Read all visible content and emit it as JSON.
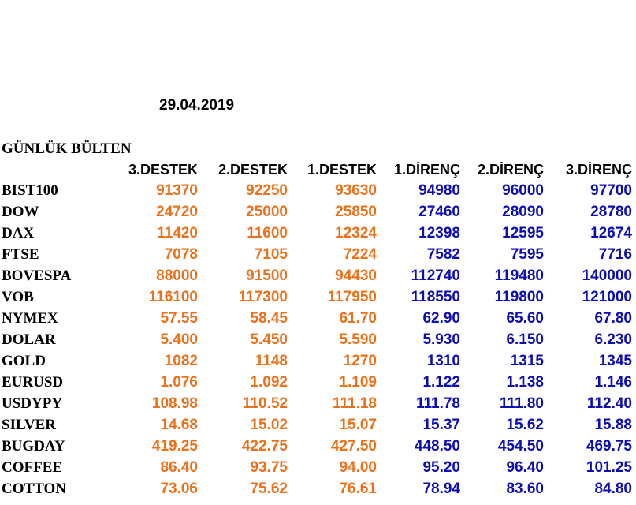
{
  "date": "29.04.2019",
  "title": "GÜNLÜK BÜLTEN",
  "colors": {
    "support": "#ec7018",
    "resistance": "#0c0cb4"
  },
  "columns": [
    "3.DESTEK",
    "2.DESTEK",
    "1.DESTEK",
    "1.DİRENÇ",
    "2.DİRENÇ",
    "3.DİRENÇ"
  ],
  "rows": [
    {
      "name": "BIST100",
      "values": [
        "91370",
        "92250",
        "93630",
        "94980",
        "96000",
        "97700"
      ]
    },
    {
      "name": "DOW",
      "values": [
        "24720",
        "25000",
        "25850",
        "27460",
        "28090",
        "28780"
      ]
    },
    {
      "name": "DAX",
      "values": [
        "11420",
        "11600",
        "12324",
        "12398",
        "12595",
        "12674"
      ]
    },
    {
      "name": "FTSE",
      "values": [
        "7078",
        "7105",
        "7224",
        "7582",
        "7595",
        "7716"
      ]
    },
    {
      "name": "BOVESPA",
      "values": [
        "88000",
        "91500",
        "94430",
        "112740",
        "119480",
        "140000"
      ]
    },
    {
      "name": "VOB",
      "values": [
        "116100",
        "117300",
        "117950",
        "118550",
        "119800",
        "121000"
      ]
    },
    {
      "name": "NYMEX",
      "values": [
        "57.55",
        "58.45",
        "61.70",
        "62.90",
        "65.60",
        "67.80"
      ]
    },
    {
      "name": "DOLAR",
      "values": [
        "5.400",
        "5.450",
        "5.590",
        "5.930",
        "6.150",
        "6.230"
      ]
    },
    {
      "name": "GOLD",
      "values": [
        "1082",
        "1148",
        "1270",
        "1310",
        "1315",
        "1345"
      ]
    },
    {
      "name": "EURUSD",
      "values": [
        "1.076",
        "1.092",
        "1.109",
        "1.122",
        "1.138",
        "1.146"
      ]
    },
    {
      "name": "USDYPY",
      "values": [
        "108.98",
        "110.52",
        "111.18",
        "111.78",
        "111.80",
        "112.40"
      ]
    },
    {
      "name": "SILVER",
      "values": [
        "14.68",
        "15.02",
        "15.07",
        "15.37",
        "15.62",
        "15.88"
      ]
    },
    {
      "name": "BUGDAY",
      "values": [
        "419.25",
        "422.75",
        "427.50",
        "448.50",
        "454.50",
        "469.75"
      ]
    },
    {
      "name": "COFFEE",
      "values": [
        "86.40",
        "93.75",
        "94.00",
        "95.20",
        "96.40",
        "101.25"
      ]
    },
    {
      "name": "COTTON",
      "values": [
        "73.06",
        "75.62",
        "76.61",
        "78.94",
        "83.60",
        "84.80"
      ]
    }
  ]
}
